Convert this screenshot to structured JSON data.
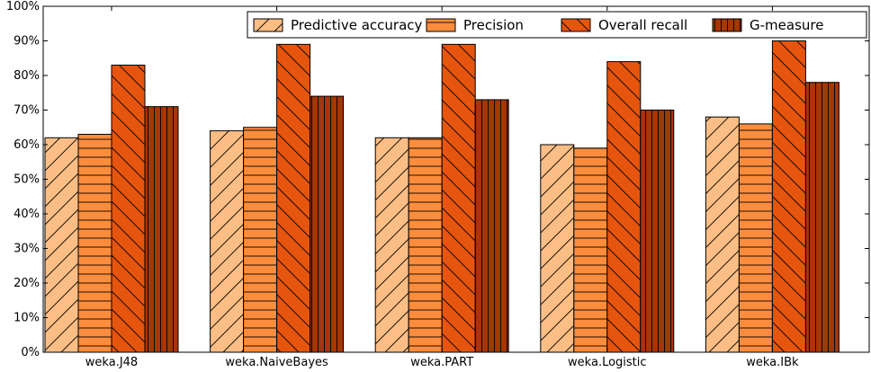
{
  "chart_data": {
    "type": "bar",
    "categories": [
      "weka.J48",
      "weka.NaiveBayes",
      "weka.PART",
      "weka.Logistic",
      "weka.IBk"
    ],
    "series": [
      {
        "name": "Predictive accuracy",
        "values": [
          62,
          64,
          62,
          60,
          68
        ],
        "color": "#fdbe85",
        "hatch": "diagonal-up"
      },
      {
        "name": "Precision",
        "values": [
          63,
          65,
          62,
          59,
          66
        ],
        "color": "#fd8d3c",
        "hatch": "horizontal"
      },
      {
        "name": "Overall recall",
        "values": [
          83,
          89,
          89,
          84,
          90
        ],
        "color": "#e6550d",
        "hatch": "diagonal-down"
      },
      {
        "name": "G-measure",
        "values": [
          71,
          74,
          73,
          70,
          78
        ],
        "color": "#a63603",
        "hatch": "vertical"
      }
    ],
    "yticks": [
      "0%",
      "10%",
      "20%",
      "30%",
      "40%",
      "50%",
      "60%",
      "70%",
      "80%",
      "90%",
      "100%"
    ],
    "ylim": [
      0,
      100
    ],
    "grid": false,
    "legend_position": "top-right",
    "title": "",
    "xlabel": "",
    "ylabel": ""
  }
}
